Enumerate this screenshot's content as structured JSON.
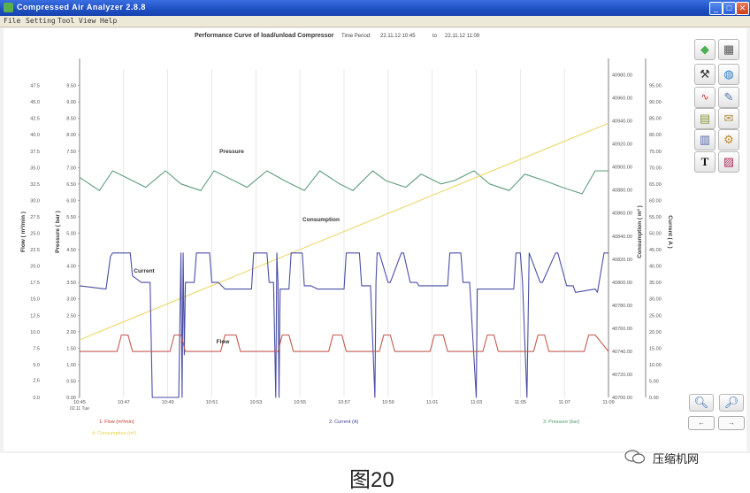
{
  "window": {
    "title": "Compressed Air Analyzer 2.8.8",
    "controls": [
      "_",
      "□",
      "✕"
    ]
  },
  "menu": [
    "File",
    "Setting",
    "Tool",
    "View",
    "Help"
  ],
  "header": {
    "chart_title": "Performance Curve of load/unload Compressor",
    "time_period_label": "Time Period:",
    "from": "22.11.12 10:45",
    "to_label": "to",
    "to": "22.11.12 11:09"
  },
  "toolbar": {
    "icons": [
      "cube-icon",
      "calculator-icon",
      "hammer-icon",
      "globe-icon",
      "line-chart-icon",
      "chart-pen-icon",
      "document-icon",
      "note-icon",
      "bar-chart-icon",
      "gear-document-icon",
      "text-icon",
      "image-icon"
    ],
    "bottom_icons": [
      "zoom-in-icon",
      "zoom-out-icon"
    ],
    "nav": [
      "←",
      "→"
    ]
  },
  "chart_data": {
    "type": "line",
    "title": "Performance Curve of load/unload Compressor",
    "x_ticks": [
      "10:45",
      "10:47",
      "10:49",
      "10:51",
      "10:53",
      "10:55",
      "10:57",
      "10:59",
      "11:01",
      "11:03",
      "11:05",
      "11:07",
      "11:09"
    ],
    "x_date": "02.11 Tue",
    "axes": {
      "flow": {
        "label": "Flow ( m³/min )",
        "ticks": [
          "0.0",
          "2.6",
          "5.0",
          "7.5",
          "10.0",
          "12.5",
          "15.0",
          "17.5",
          "20.0",
          "22.5",
          "25.0",
          "27.5",
          "30.0",
          "32.5",
          "35.0",
          "37.5",
          "40.0",
          "42.5",
          "45.0",
          "47.5"
        ],
        "range": [
          0,
          50
        ]
      },
      "pressure": {
        "label": "Pressure ( bar )",
        "ticks": [
          "0.00",
          "0.50",
          "1.00",
          "1.50",
          "2.00",
          "2.50",
          "3.00",
          "3.50",
          "4.00",
          "4.50",
          "5.00",
          "5.50",
          "6.00",
          "6.50",
          "7.00",
          "7.50",
          "8.00",
          "8.50",
          "9.00",
          "9.50"
        ],
        "range": [
          0,
          10
        ]
      },
      "consumption": {
        "label": "Consumption ( m³ )",
        "ticks": [
          "40700.00",
          "40720.00",
          "40740.00",
          "40760.00",
          "40780.00",
          "40800.00",
          "40820.00",
          "40840.00",
          "40860.00",
          "40880.00",
          "40900.00",
          "40920.00",
          "40940.00",
          "40960.00",
          "40980.00"
        ],
        "range": [
          40700,
          40985
        ]
      },
      "current": {
        "label": "Current ( A )",
        "ticks": [
          "0.00",
          "5.00",
          "10.00",
          "15.00",
          "20.00",
          "25.00",
          "30.00",
          "35.00",
          "40.00",
          "45.00",
          "50.00",
          "55.00",
          "60.00",
          "65.00",
          "70.00",
          "75.00",
          "80.00",
          "85.00",
          "90.00",
          "95.00"
        ],
        "range": [
          0,
          100
        ]
      }
    },
    "annotations": [
      {
        "text": "Pressure"
      },
      {
        "text": "Consumption"
      },
      {
        "text": "Current"
      },
      {
        "text": "Flow"
      }
    ],
    "legend": [
      {
        "name": "1: Flow (m³/min)",
        "color": "#c0392b"
      },
      {
        "name": "2: Current (A)",
        "color": "#3b3f9a"
      },
      {
        "name": "3: Pressure (bar)",
        "color": "#4a9a6a"
      },
      {
        "name": "4: Consumption (m³)",
        "color": "#e6d24a"
      }
    ],
    "series": [
      {
        "name": "Pressure",
        "axis": "pressure",
        "color": "#5e9d7c",
        "x": [
          0,
          0.9,
          1.5,
          2.4,
          3.0,
          3.9,
          4.6,
          5.5,
          6.1,
          7.0,
          7.6,
          8.5,
          9.3,
          10.2,
          10.9,
          11.8,
          12.4,
          13.3,
          13.9,
          14.8,
          15.5,
          16.4,
          17.0,
          17.9,
          18.6,
          19.5,
          20.2,
          21.1,
          21.9,
          22.8,
          23.4,
          24
        ],
        "y": [
          6.7,
          6.3,
          6.9,
          6.6,
          6.4,
          6.9,
          6.5,
          6.3,
          6.9,
          6.6,
          6.4,
          6.9,
          6.6,
          6.3,
          6.9,
          6.5,
          6.3,
          6.9,
          6.6,
          6.4,
          6.8,
          6.5,
          6.6,
          6.9,
          6.5,
          6.3,
          6.8,
          6.6,
          6.4,
          6.2,
          6.9,
          6.9
        ]
      },
      {
        "name": "Consumption",
        "axis": "consumption",
        "color": "#ecd86a",
        "x": [
          0,
          24
        ],
        "y": [
          40750,
          40938
        ]
      },
      {
        "name": "Current",
        "axis": "current",
        "color": "#4b4fa6",
        "x": [
          0,
          1.2,
          1.4,
          1.5,
          2.3,
          2.4,
          2.8,
          3.2,
          3.3,
          3.4,
          4.5,
          4.6,
          4.65,
          4.7,
          4.75,
          4.8,
          5.2,
          5.3,
          5.9,
          6.0,
          6.3,
          6.6,
          6.7,
          7.8,
          7.9,
          8.5,
          8.6,
          8.8,
          8.9,
          8.95,
          9.0,
          9.05,
          9.1,
          9.5,
          9.6,
          10.1,
          10.2,
          10.5,
          10.8,
          10.9,
          12.0,
          12.1,
          12.7,
          12.8,
          13.2,
          13.4,
          13.45,
          13.5,
          13.6,
          14.0,
          14.1,
          14.6,
          14.7,
          15.0,
          15.3,
          15.4,
          16.7,
          16.8,
          17.3,
          17.4,
          17.7,
          18.0,
          18.05,
          18.1,
          19.7,
          19.8,
          20.0,
          20.1,
          20.3,
          20.4,
          20.9,
          21.0,
          21.6,
          21.7,
          22.1,
          22.4,
          22.5,
          23.4,
          23.5,
          23.8,
          24
        ],
        "y": [
          34,
          33,
          43,
          44,
          44,
          37,
          35,
          35,
          0,
          0,
          0,
          44,
          0,
          44,
          13,
          35,
          35,
          44,
          44,
          35,
          35,
          33,
          33,
          33,
          44,
          44,
          35,
          35,
          0,
          44,
          35,
          0,
          33,
          33,
          44,
          44,
          34,
          34,
          33,
          33,
          33,
          44,
          44,
          34,
          34,
          0,
          35,
          44,
          44,
          35,
          35,
          44,
          44,
          35,
          35,
          34,
          34,
          44,
          44,
          35,
          35,
          0,
          33,
          33,
          33,
          44,
          44,
          35,
          0,
          44,
          35,
          35,
          44,
          44,
          34,
          34,
          32,
          33,
          32,
          44,
          44
        ]
      },
      {
        "name": "Flow",
        "axis": "flow",
        "color": "#c45a50",
        "x": [
          0,
          1.7,
          1.9,
          2.2,
          2.4,
          4.1,
          4.3,
          4.6,
          4.8,
          6.4,
          6.6,
          7.1,
          7.3,
          9.0,
          9.2,
          9.5,
          9.7,
          11.3,
          11.5,
          11.9,
          12.1,
          13.6,
          13.8,
          14.1,
          14.3,
          15.9,
          16.1,
          16.5,
          16.7,
          18.3,
          18.5,
          18.8,
          19.0,
          20.6,
          20.8,
          21.1,
          21.3,
          22.9,
          23.1,
          23.4,
          24
        ],
        "y": [
          7.0,
          7.0,
          9.5,
          9.5,
          7.0,
          7.0,
          9.5,
          9.5,
          7.0,
          7.0,
          9.5,
          9.5,
          7.0,
          7.0,
          9.5,
          9.5,
          7.0,
          7.0,
          9.5,
          9.5,
          7.0,
          7.0,
          9.5,
          9.5,
          7.0,
          7.0,
          9.5,
          9.5,
          7.0,
          7.0,
          9.5,
          9.5,
          7.0,
          7.0,
          9.5,
          9.5,
          7.0,
          7.0,
          9.5,
          9.5,
          7.0
        ]
      }
    ]
  },
  "watermark": "压缩机网",
  "caption": "图20"
}
